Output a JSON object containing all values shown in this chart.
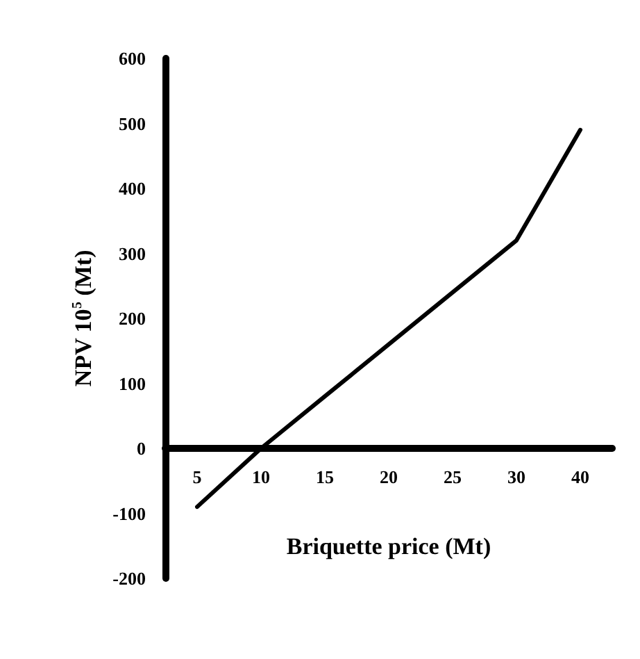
{
  "chart_data": {
    "type": "line",
    "xlabel": "Briquette price (Mt)",
    "ylabel": "NPV 10$^{5}$ (Mt)",
    "categories": [
      "5",
      "10",
      "15",
      "20",
      "25",
      "30",
      "40"
    ],
    "series": [
      {
        "color": "#000000",
        "values": [
          -90,
          0,
          80,
          160,
          240,
          320,
          490
        ]
      }
    ],
    "ylim": [
      -200,
      600
    ],
    "yticks": [
      -200,
      -100,
      0,
      100,
      200,
      300,
      400,
      500,
      600
    ],
    "marker": "none",
    "line_style": "solid"
  }
}
